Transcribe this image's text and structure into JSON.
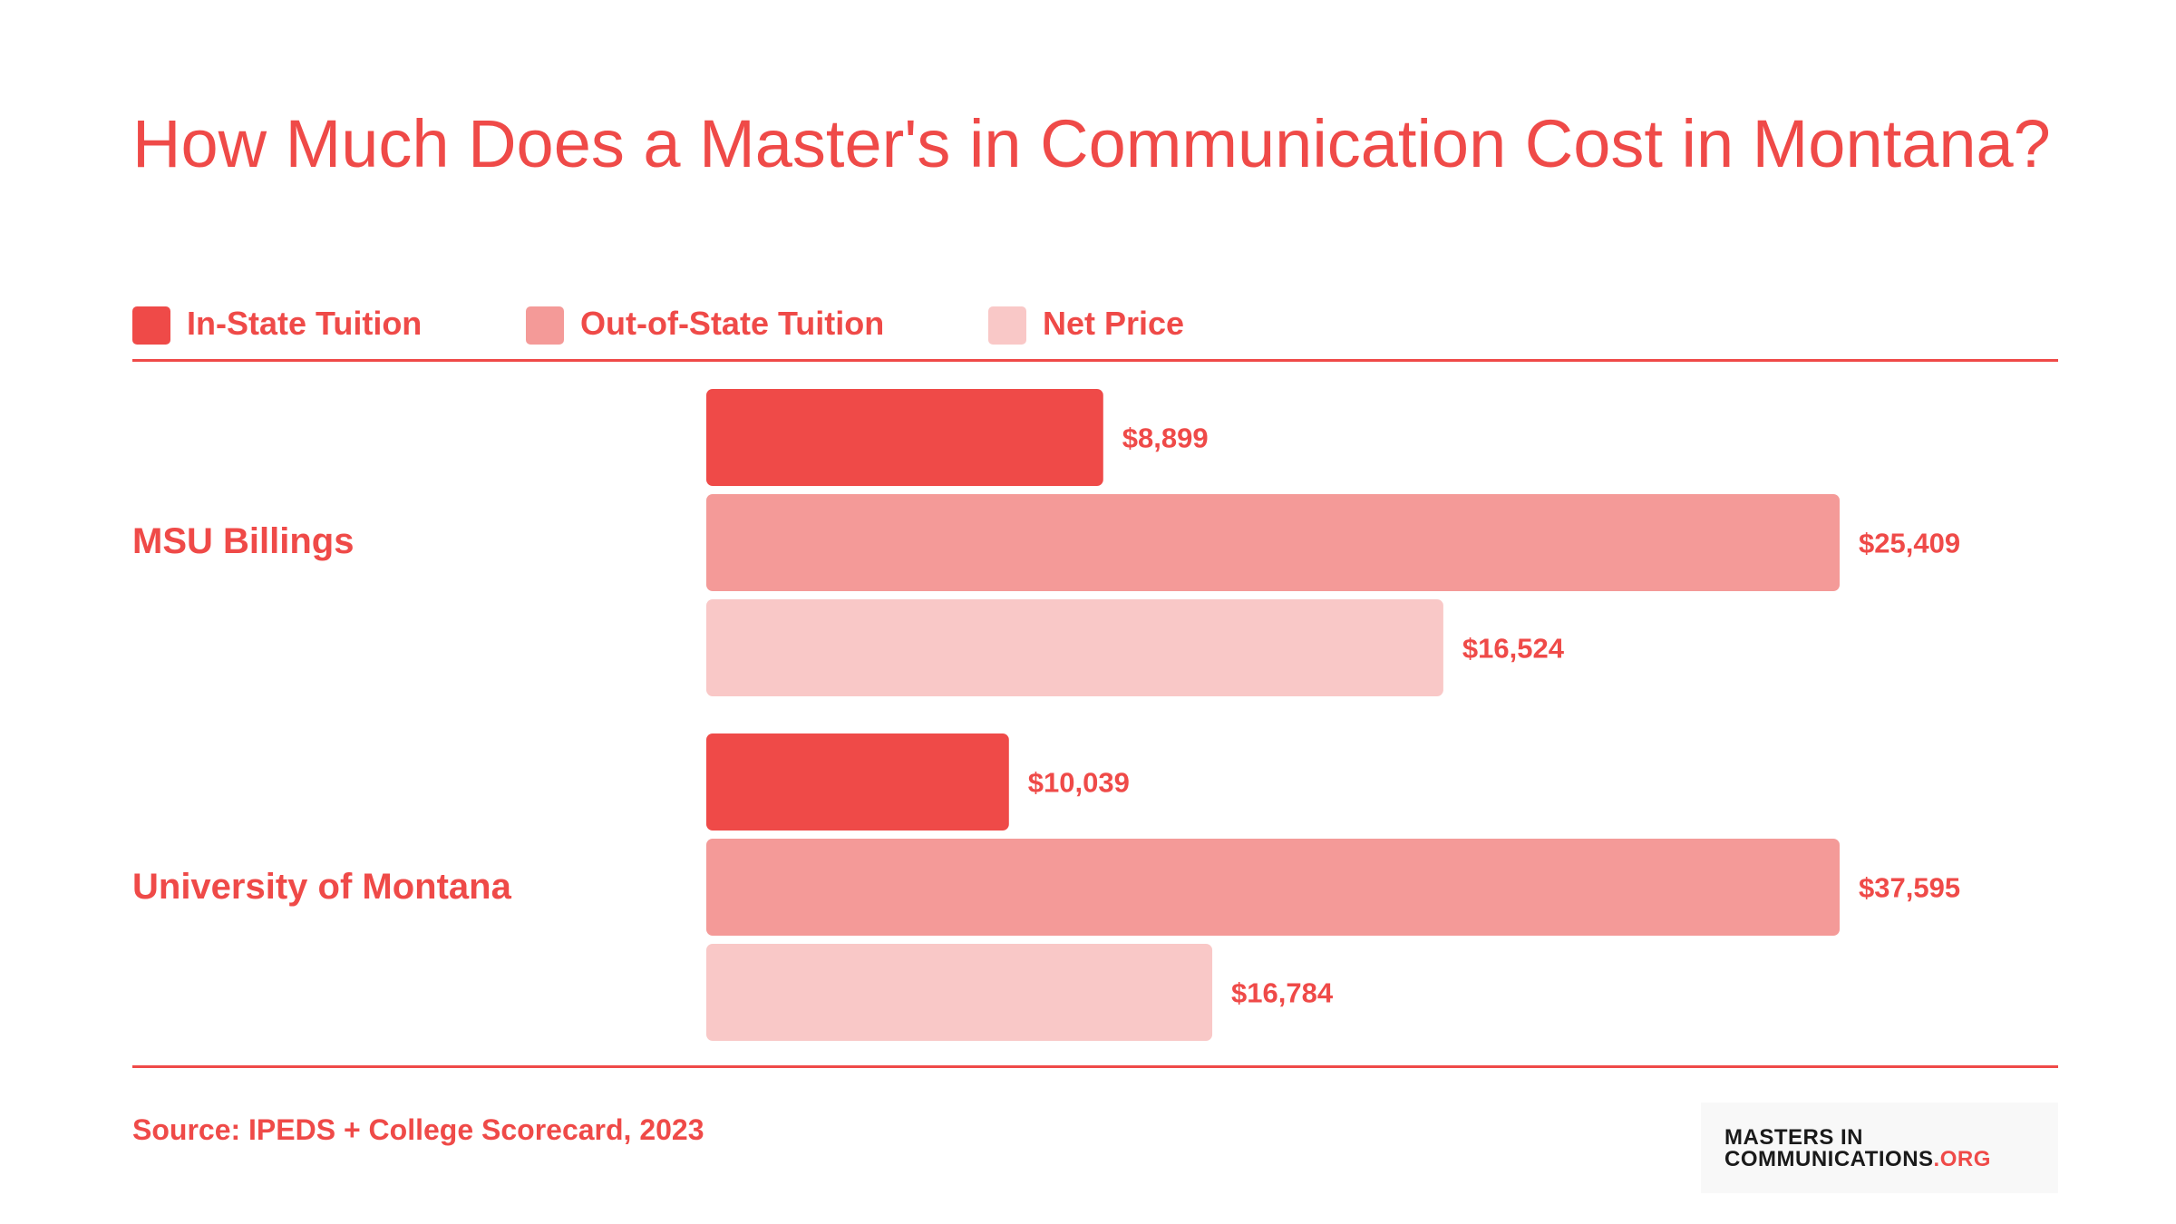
{
  "title": "How Much Does a Master's in Communication Cost in Montana?",
  "source": "Source: IPEDS + College Scorecard, 2023",
  "logo": {
    "line1": "MASTERS IN",
    "line2_main": "COMMUNICATIONS",
    "line2_suffix": ".ORG"
  },
  "colors": {
    "in_state": "#ef4a48",
    "out_of_state": "#f49a98",
    "net_price": "#f9c8c7",
    "text": "#ef4a48"
  },
  "chart_data": {
    "type": "bar",
    "orientation": "horizontal",
    "title": "How Much Does a Master's in Communication Cost in Montana?",
    "legend_position": "top-left",
    "grid": false,
    "categories": [
      "MSU Billings",
      "University of Montana"
    ],
    "series": [
      {
        "name": "In-State Tuition",
        "values": [
          8899,
          10039
        ],
        "labels": [
          "$8,899",
          "$10,039"
        ]
      },
      {
        "name": "Out-of-State Tuition",
        "values": [
          25409,
          37595
        ],
        "labels": [
          "$25,409",
          "$37,595"
        ]
      },
      {
        "name": "Net Price",
        "values": [
          16524,
          16784
        ],
        "labels": [
          "$16,524",
          "$16,784"
        ]
      }
    ]
  }
}
